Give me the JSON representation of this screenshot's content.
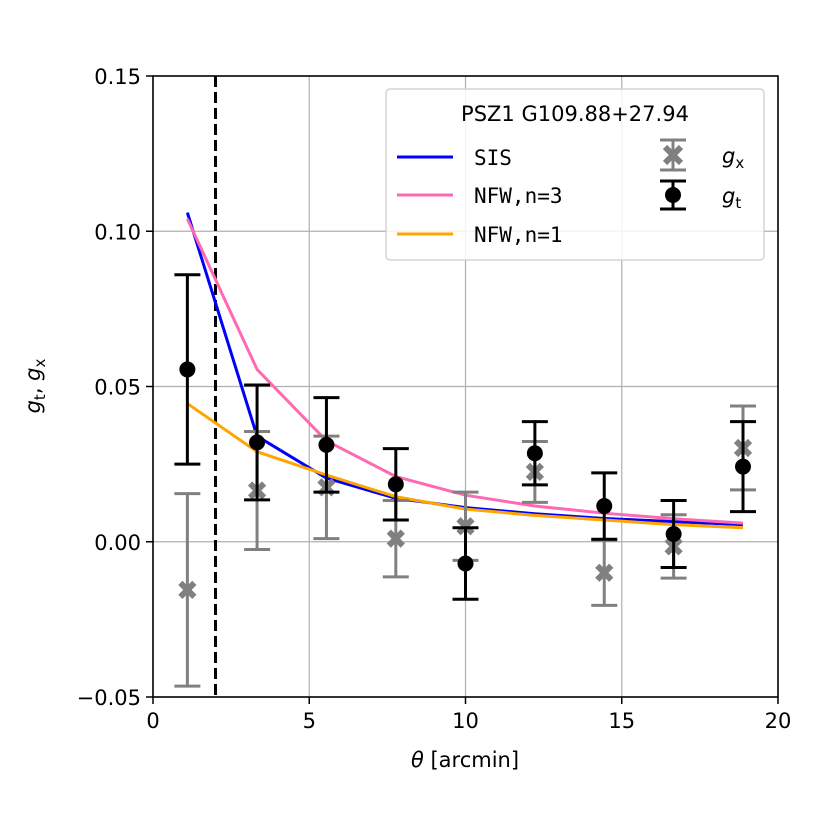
{
  "chart_data": {
    "type": "line",
    "title": "",
    "xlabel_symbol": "θ",
    "xlabel_unit": " [arcmin]",
    "ylabel": {
      "g1": "g",
      "s1": "t",
      "sep": ", ",
      "g2": "g",
      "s2": "x"
    },
    "xlim": [
      0,
      20
    ],
    "ylim": [
      -0.05,
      0.15
    ],
    "xticks": [
      0,
      5,
      10,
      15,
      20
    ],
    "xtick_labels": [
      "0",
      "5",
      "10",
      "15",
      "20"
    ],
    "yticks": [
      -0.05,
      0.0,
      0.05,
      0.1,
      0.15
    ],
    "ytick_labels": [
      "−0.05",
      "0.00",
      "0.05",
      "0.10",
      "0.15"
    ],
    "grid": true,
    "vline": {
      "x": 2.0,
      "style": "dashed",
      "color": "#000000"
    },
    "legend": {
      "position": "top-right",
      "title": "PSZ1 G109.88+27.94",
      "entries": [
        {
          "label": "SIS",
          "kind": "line",
          "color": "#0000ff",
          "mono": true
        },
        {
          "label": "NFW,n=3",
          "kind": "line",
          "color": "#ff69b4",
          "mono": true
        },
        {
          "label": "NFW,n=1",
          "kind": "line",
          "color": "#ffa500",
          "mono": true
        },
        {
          "label_g": "g",
          "label_sub": "x",
          "kind": "errorbar",
          "marker": "x",
          "color": "#808080"
        },
        {
          "label_g": "g",
          "label_sub": "t",
          "kind": "errorbar",
          "marker": "o",
          "color": "#000000"
        }
      ]
    },
    "series": [
      {
        "name": "SIS",
        "kind": "line",
        "color": "#0000ff",
        "x": [
          1.1,
          3.33,
          5.55,
          7.77,
          10.0,
          12.22,
          14.44,
          16.66,
          18.88
        ],
        "y": [
          0.106,
          0.034,
          0.0205,
          0.014,
          0.011,
          0.009,
          0.0075,
          0.0065,
          0.0055
        ]
      },
      {
        "name": "NFW,n=3",
        "kind": "line",
        "color": "#ff69b4",
        "x": [
          1.1,
          3.33,
          5.55,
          7.77,
          10.0,
          12.22,
          14.44,
          16.66,
          18.88
        ],
        "y": [
          0.104,
          0.0555,
          0.0325,
          0.021,
          0.015,
          0.0115,
          0.0092,
          0.0074,
          0.006
        ]
      },
      {
        "name": "NFW,n=1",
        "kind": "line",
        "color": "#ffa500",
        "x": [
          1.1,
          3.33,
          5.55,
          7.77,
          10.0,
          12.22,
          14.44,
          16.66,
          18.88
        ],
        "y": [
          0.0445,
          0.029,
          0.0215,
          0.0145,
          0.0105,
          0.0085,
          0.007,
          0.0055,
          0.0045
        ]
      },
      {
        "name": "g_x",
        "kind": "errorbar",
        "marker": "x",
        "color": "#808080",
        "x": [
          1.1,
          3.33,
          5.55,
          7.77,
          10.0,
          12.22,
          14.44,
          16.66,
          18.88
        ],
        "y": [
          -0.0155,
          0.0165,
          0.0175,
          0.001,
          0.005,
          0.0225,
          -0.01,
          -0.0015,
          0.0302
        ],
        "err": [
          0.031,
          0.019,
          0.0165,
          0.0123,
          0.011,
          0.0098,
          0.0105,
          0.0102,
          0.0135
        ]
      },
      {
        "name": "g_t",
        "kind": "errorbar",
        "marker": "o",
        "color": "#000000",
        "x": [
          1.1,
          3.33,
          5.55,
          7.77,
          10.0,
          12.22,
          14.44,
          16.66,
          18.88
        ],
        "y": [
          0.0555,
          0.032,
          0.0312,
          0.0185,
          -0.007,
          0.0285,
          0.0115,
          0.0025,
          0.0242
        ],
        "err": [
          0.0305,
          0.0185,
          0.0152,
          0.0115,
          0.0115,
          0.0102,
          0.0107,
          0.0108,
          0.0145
        ]
      }
    ]
  }
}
